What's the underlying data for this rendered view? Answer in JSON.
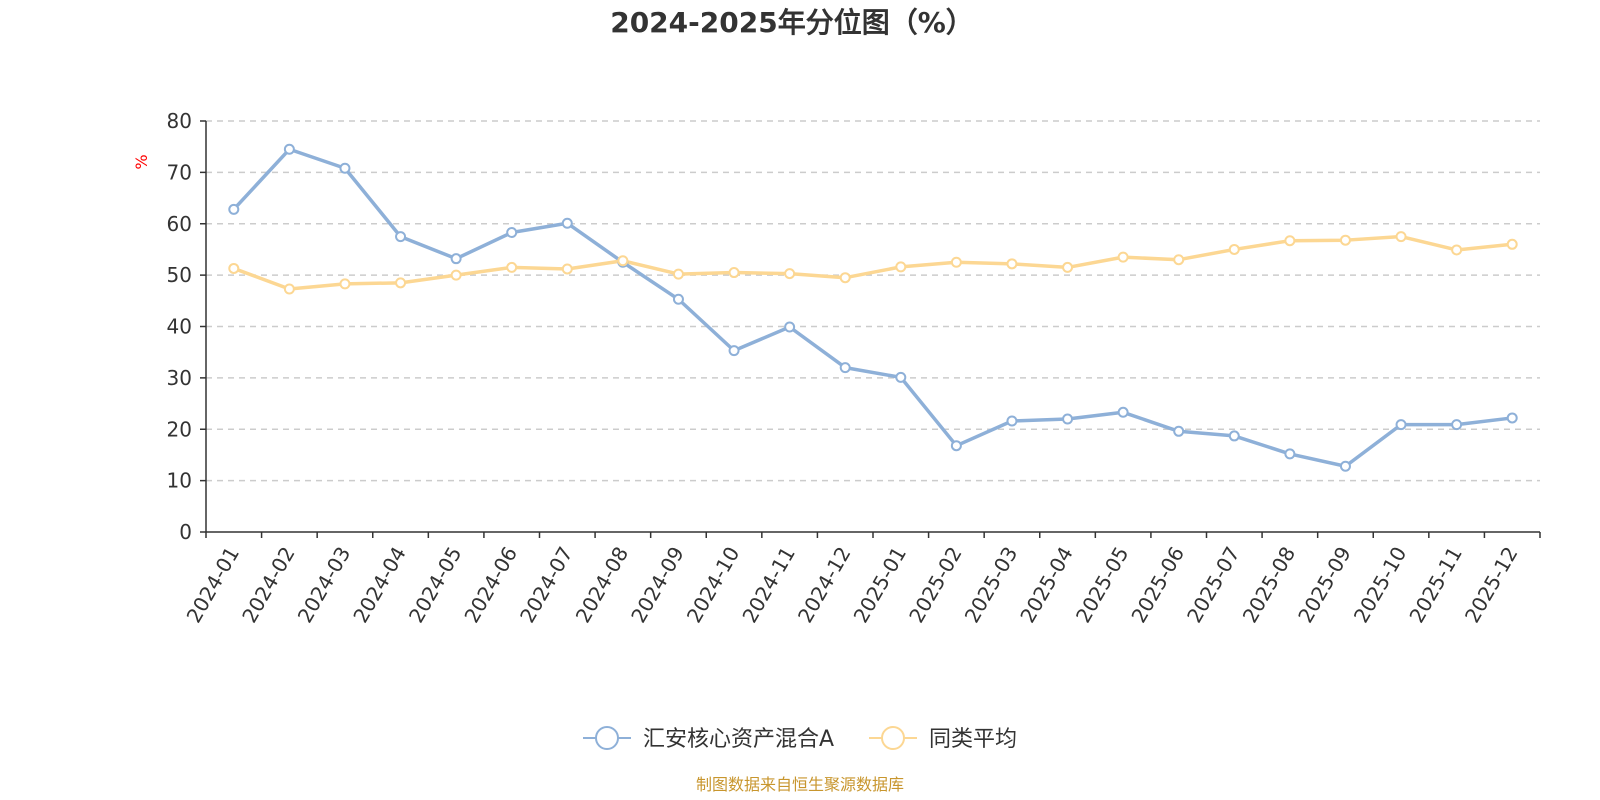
{
  "chart_data": {
    "type": "line",
    "title": "2024-2025年分位图（%）",
    "ylabel": "%",
    "xlabel": "",
    "ylim": [
      0,
      80
    ],
    "yticks": [
      "0",
      "10",
      "20",
      "30",
      "40",
      "50",
      "60",
      "70",
      "80"
    ],
    "grid": true,
    "legend_position": "bottom-center",
    "categories": [
      "2024-01",
      "2024-02",
      "2024-03",
      "2024-04",
      "2024-05",
      "2024-06",
      "2024-07",
      "2024-08",
      "2024-09",
      "2024-10",
      "2024-11",
      "2024-12",
      "2025-01",
      "2025-02",
      "2025-03",
      "2025-04",
      "2025-05",
      "2025-06",
      "2025-07",
      "2025-08",
      "2025-09",
      "2025-10",
      "2025-11",
      "2025-12"
    ],
    "series": [
      {
        "name": "汇安核心资产混合A",
        "color": "#8eb0d8",
        "values": [
          62.8,
          74.5,
          70.8,
          57.5,
          53.2,
          58.3,
          60.1,
          52.5,
          45.3,
          35.3,
          39.9,
          32.0,
          30.1,
          16.8,
          21.6,
          22.0,
          23.3,
          19.6,
          18.7,
          15.2,
          12.8,
          20.9,
          20.9,
          22.2
        ]
      },
      {
        "name": "同类平均",
        "color": "#fcd793",
        "values": [
          51.3,
          47.3,
          48.3,
          48.5,
          50.0,
          51.5,
          51.2,
          52.8,
          50.2,
          50.5,
          50.3,
          49.5,
          51.6,
          52.5,
          52.2,
          51.5,
          53.5,
          53.0,
          55.0,
          56.7,
          56.8,
          57.5,
          54.9,
          56.0
        ]
      }
    ],
    "source": "制图数据来自恒生聚源数据库",
    "colors": {
      "axis": "#333333",
      "grid": "#cccccc",
      "unit": "#ff0000",
      "source": "#c8962e"
    }
  }
}
